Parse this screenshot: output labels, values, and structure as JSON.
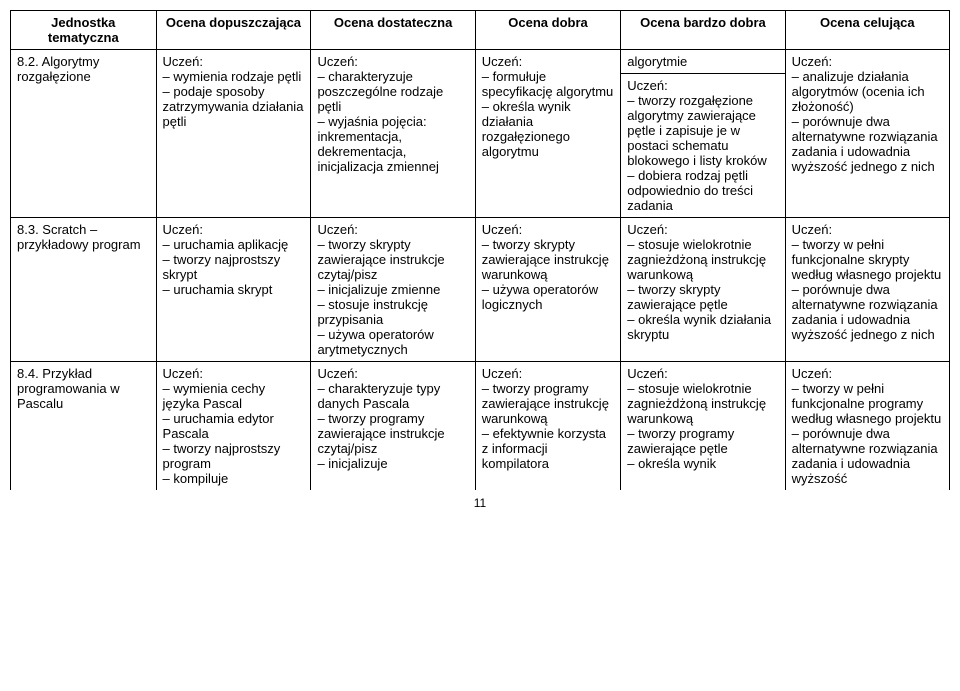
{
  "headers": {
    "c1": "Jednostka tematyczna",
    "c2": "Ocena dopuszczająca",
    "c3": "Ocena dostateczna",
    "c4": "Ocena dobra",
    "c5": "Ocena bardzo dobra",
    "c6": "Ocena celująca"
  },
  "spillover": {
    "c5": "algorytmie"
  },
  "rows": [
    {
      "title": "8.2. Algorytmy rozgałęzione",
      "c2": "Uczeń:\n– wymienia rodzaje pętli\n– podaje sposoby zatrzymywania działania pętli",
      "c3": "Uczeń:\n– charakteryzuje poszczególne rodzaje pętli\n– wyjaśnia pojęcia: inkrementacja, dekrementacja, inicjalizacja zmiennej",
      "c4": "Uczeń:\n– formułuje specyfikację algorytmu\n– określa wynik działania rozgałęzionego algorytmu",
      "c5": "Uczeń:\n– tworzy rozgałęzione algorytmy zawierające pętle i zapisuje je w postaci schematu blokowego i listy kroków\n– dobiera rodzaj pętli odpowiednio do treści zadania",
      "c6": "Uczeń:\n– analizuje działania algorytmów (ocenia ich złożoność)\n– porównuje dwa alternatywne rozwiązania zadania i udowadnia wyższość jednego z nich"
    },
    {
      "title": "8.3. Scratch – przykładowy program",
      "c2": "Uczeń:\n– uruchamia aplikację\n– tworzy najprostszy skrypt\n– uruchamia skrypt",
      "c3": "Uczeń:\n– tworzy skrypty zawierające instrukcje czytaj/pisz\n– inicjalizuje zmienne\n– stosuje instrukcję przypisania\n– używa operatorów arytmetycznych",
      "c4": "Uczeń:\n– tworzy skrypty zawierające instrukcję warunkową\n– używa operatorów logicznych",
      "c5": "Uczeń:\n– stosuje wielokrotnie zagnieżdżoną instrukcję warunkową\n– tworzy skrypty zawierające pętle\n– określa wynik działania skryptu",
      "c6": "Uczeń:\n– tworzy w pełni funkcjonalne skrypty według własnego projektu\n– porównuje dwa alternatywne rozwiązania zadania i udowadnia wyższość jednego z nich"
    },
    {
      "title": "8.4. Przykład programowania w Pascalu",
      "c2": "Uczeń:\n– wymienia cechy języka Pascal\n– uruchamia edytor Pascala\n– tworzy najprostszy program\n– kompiluje",
      "c3": "Uczeń:\n– charakteryzuje typy danych Pascala\n– tworzy programy zawierające instrukcje czytaj/pisz\n– inicjalizuje",
      "c4": "Uczeń:\n– tworzy programy zawierające instrukcję warunkową\n– efektywnie korzysta z informacji kompilatora",
      "c5": "Uczeń:\n– stosuje wielokrotnie zagnieżdżoną instrukcję warunkową\n– tworzy programy zawierające pętle\n– określa wynik",
      "c6": "Uczeń:\n– tworzy w pełni funkcjonalne programy według własnego projektu\n– porównuje dwa alternatywne rozwiązania zadania i udowadnia wyższość"
    }
  ],
  "page_number": "11"
}
